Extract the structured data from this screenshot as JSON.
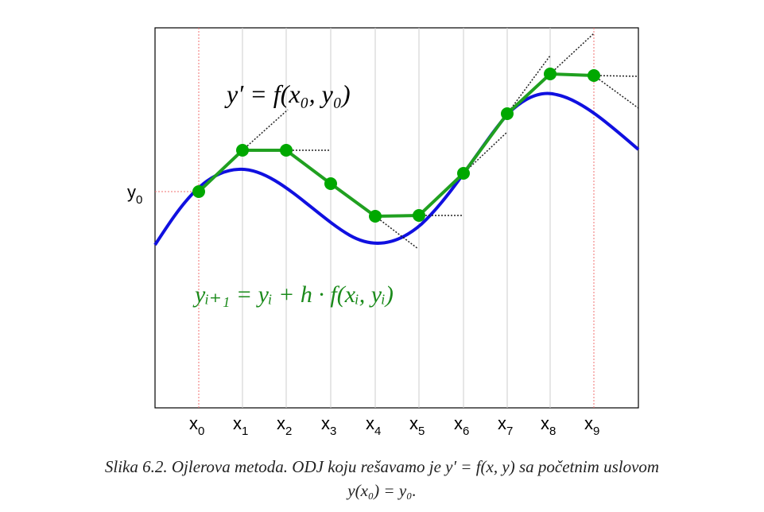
{
  "figure": {
    "y_label": {
      "base": "y",
      "sub": "0"
    },
    "x_ticks": [
      {
        "base": "x",
        "sub": "0"
      },
      {
        "base": "x",
        "sub": "1"
      },
      {
        "base": "x",
        "sub": "2"
      },
      {
        "base": "x",
        "sub": "3"
      },
      {
        "base": "x",
        "sub": "4"
      },
      {
        "base": "x",
        "sub": "5"
      },
      {
        "base": "x",
        "sub": "6"
      },
      {
        "base": "x",
        "sub": "7"
      },
      {
        "base": "x",
        "sub": "8"
      },
      {
        "base": "x",
        "sub": "9"
      }
    ],
    "equation_ode": "y′ = f(x₀, y₀)",
    "equation_euler": "yᵢ₊₁ = yᵢ + h · f(xᵢ, yᵢ)",
    "colors": {
      "exact_curve": "#1010e0",
      "euler_path": "#20a020",
      "euler_points": "#00a800",
      "tangent_lines": "#222222",
      "guide_lines": "#f07070",
      "euler_equation": "#1a8a1a"
    }
  },
  "caption": {
    "line1_prefix": "Slika 6.2. Ojlerova metoda. ODJ koju rešavamo je ",
    "line1_math": "y′ = f(x, y)",
    "line1_suffix": " sa početnim uslovom",
    "line2_math": "y(x₀) = y₀",
    "line2_suffix": "."
  }
}
